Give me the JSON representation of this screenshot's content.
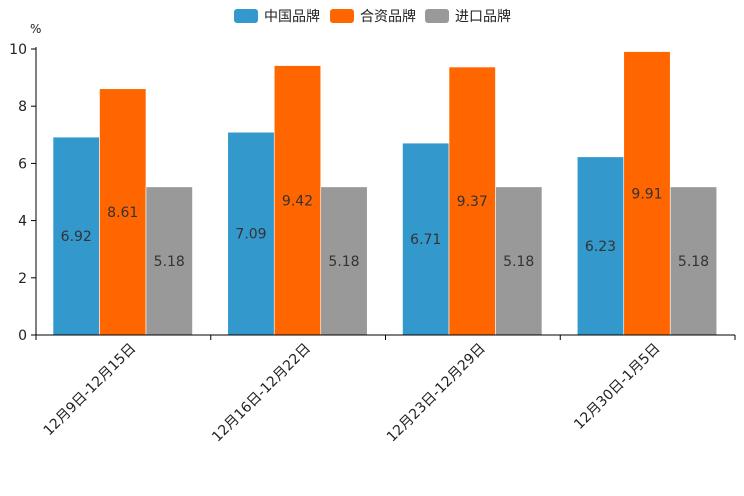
{
  "chart_data": {
    "type": "bar",
    "title": "",
    "xlabel": "",
    "ylabel": "%",
    "ylim": [
      0,
      10
    ],
    "yticks": [
      0,
      2,
      4,
      6,
      8,
      10
    ],
    "grid": false,
    "legend_position": "top-center",
    "categories": [
      "12月9日-12月15日",
      "12月16日-12月22日",
      "12月23日-12月29日",
      "12月30日-1月5日"
    ],
    "series": [
      {
        "name": "中国品牌",
        "color": "#3399cc",
        "values": [
          6.92,
          7.09,
          6.71,
          6.23
        ]
      },
      {
        "name": "合资品牌",
        "color": "#ff6600",
        "values": [
          8.61,
          9.42,
          9.37,
          9.91
        ]
      },
      {
        "name": "进口品牌",
        "color": "#999999",
        "values": [
          5.18,
          5.18,
          5.18,
          5.18
        ]
      }
    ]
  }
}
